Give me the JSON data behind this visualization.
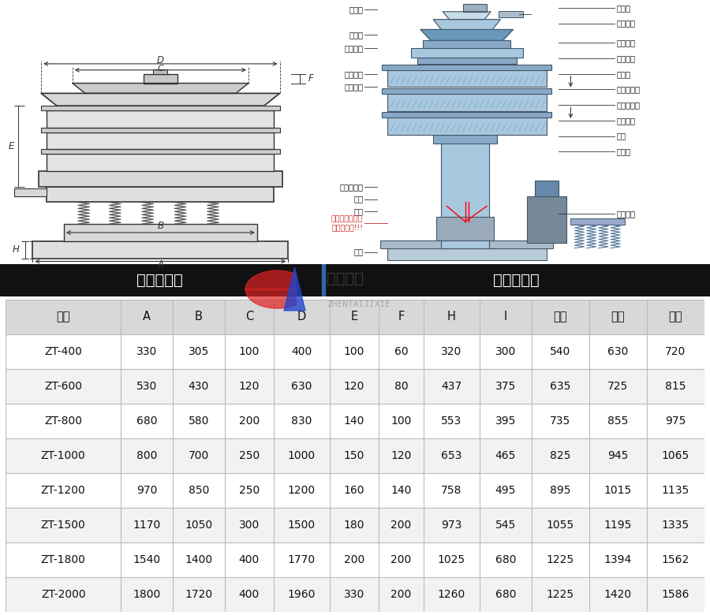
{
  "header_left": "外形尺寸图",
  "header_right": "一般结构图",
  "header_bg": "#111111",
  "header_text_color": "#ffffff",
  "table_header": [
    "型号",
    "A",
    "B",
    "C",
    "D",
    "E",
    "F",
    "H",
    "I",
    "一层",
    "二层",
    "三层"
  ],
  "table_data": [
    [
      "ZT-400",
      "330",
      "305",
      "100",
      "400",
      "100",
      "60",
      "320",
      "300",
      "540",
      "630",
      "720"
    ],
    [
      "ZT-600",
      "530",
      "430",
      "120",
      "630",
      "120",
      "80",
      "437",
      "375",
      "635",
      "725",
      "815"
    ],
    [
      "ZT-800",
      "680",
      "580",
      "200",
      "830",
      "140",
      "100",
      "553",
      "395",
      "735",
      "855",
      "975"
    ],
    [
      "ZT-1000",
      "800",
      "700",
      "250",
      "1000",
      "150",
      "120",
      "653",
      "465",
      "825",
      "945",
      "1065"
    ],
    [
      "ZT-1200",
      "970",
      "850",
      "250",
      "1200",
      "160",
      "140",
      "758",
      "495",
      "895",
      "1015",
      "1135"
    ],
    [
      "ZT-1500",
      "1170",
      "1050",
      "300",
      "1500",
      "180",
      "200",
      "973",
      "545",
      "1055",
      "1195",
      "1335"
    ],
    [
      "ZT-1800",
      "1540",
      "1400",
      "400",
      "1770",
      "200",
      "200",
      "1025",
      "680",
      "1225",
      "1394",
      "1562"
    ],
    [
      "ZT-2000",
      "1800",
      "1720",
      "400",
      "1960",
      "330",
      "200",
      "1260",
      "680",
      "1225",
      "1420",
      "1586"
    ]
  ],
  "col_widths": [
    1.6,
    0.72,
    0.72,
    0.68,
    0.78,
    0.68,
    0.62,
    0.78,
    0.72,
    0.8,
    0.8,
    0.8
  ],
  "row_bg_odd": "#ffffff",
  "row_bg_even": "#f2f2f2",
  "header_row_bg": "#d8d8d8",
  "grid_color": "#bbbbbb",
  "divider_color": "#3366aa"
}
